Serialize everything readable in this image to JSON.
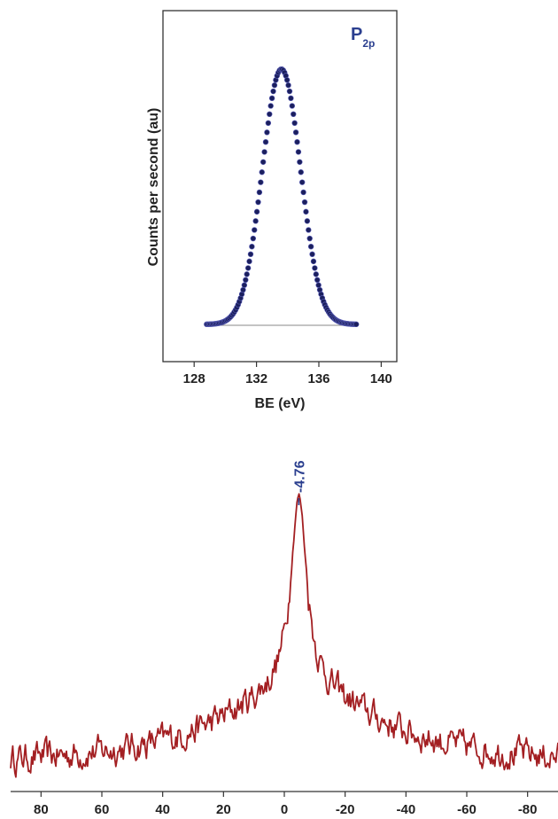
{
  "chart_data": [
    {
      "type": "scatter",
      "title": "",
      "annotation_main": "P",
      "annotation_sub": "2p",
      "xlabel": "BE (eV)",
      "ylabel": "Counts per second (au)",
      "xlim": [
        126,
        141
      ],
      "xticks": [
        "128",
        "132",
        "136",
        "140"
      ],
      "yticks_shown": false,
      "peak": {
        "center": 133.6,
        "sigma": 1.23,
        "baseline": 0.0,
        "height": 1.0
      },
      "x_start": 128.8,
      "x_end": 138.4,
      "n_points": 120,
      "marker_color": "#1b1f5e",
      "background_line_color": "#888888"
    },
    {
      "type": "line",
      "title": "",
      "peak_label": "-4.76",
      "peak_x": -4.76,
      "xlim": [
        90,
        -90
      ],
      "xticks": [
        "80",
        "60",
        "40",
        "20",
        "0",
        "-20",
        "-40",
        "-60",
        "-80"
      ],
      "xlabel": "",
      "ylabel": "",
      "line_color": "#a31f22",
      "label_color": "#2b3f8f",
      "peak_shape": {
        "baseline": 0.05,
        "broad_height": 0.28,
        "broad_width": 32,
        "sharp_height": 0.72,
        "sharp_width": 3.2,
        "noise": 0.045
      }
    }
  ]
}
